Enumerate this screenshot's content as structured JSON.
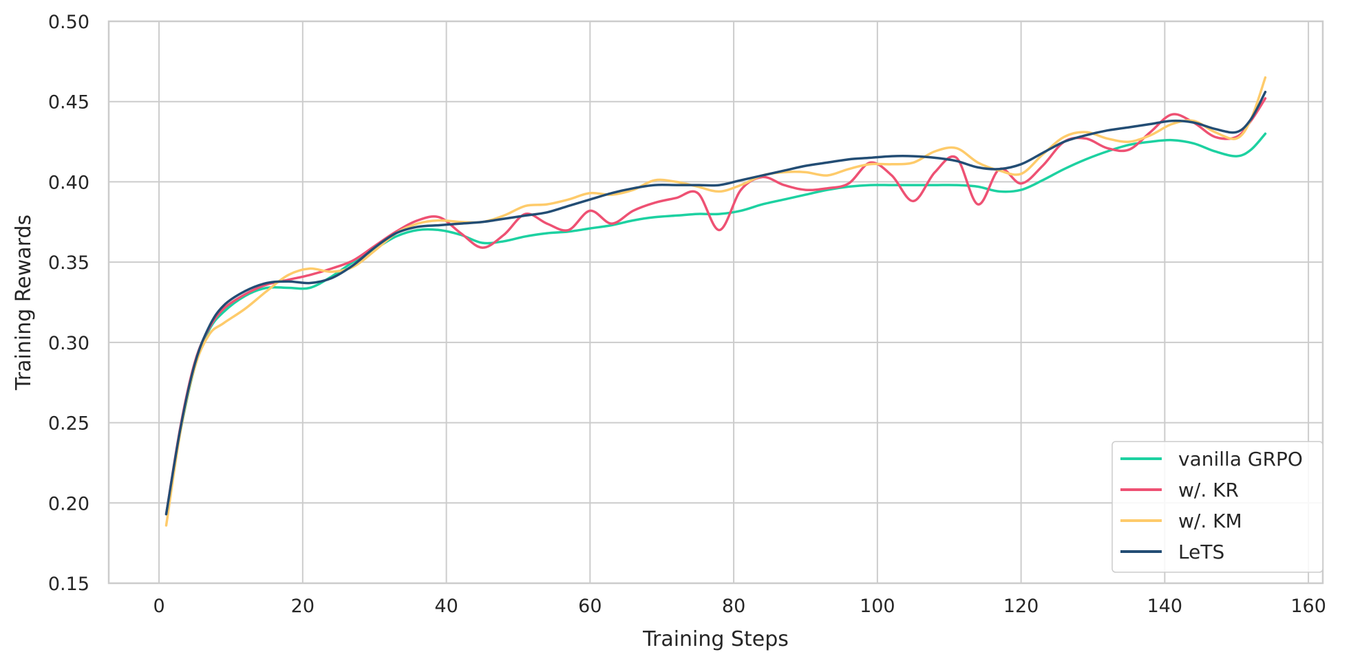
{
  "chart_data": {
    "type": "line",
    "xlabel": "Training Steps",
    "ylabel": "Training Rewards",
    "xlim": [
      -7,
      162
    ],
    "ylim": [
      0.15,
      0.5
    ],
    "xticks": [
      0,
      20,
      40,
      60,
      80,
      100,
      120,
      140,
      160
    ],
    "yticks": [
      0.15,
      0.2,
      0.25,
      0.3,
      0.35,
      0.4,
      0.45,
      0.5
    ],
    "xtick_labels": [
      "0",
      "20",
      "40",
      "60",
      "80",
      "100",
      "120",
      "140",
      "160"
    ],
    "ytick_labels": [
      "0.15",
      "0.20",
      "0.25",
      "0.30",
      "0.35",
      "0.40",
      "0.45",
      "0.50"
    ],
    "grid": true,
    "legend_position": "lower-right",
    "x": [
      1,
      3,
      5,
      7,
      9,
      12,
      15,
      18,
      21,
      24,
      27,
      30,
      33,
      36,
      39,
      42,
      45,
      48,
      51,
      54,
      57,
      60,
      63,
      66,
      69,
      72,
      75,
      78,
      81,
      84,
      87,
      90,
      93,
      96,
      99,
      102,
      105,
      108,
      111,
      114,
      117,
      120,
      123,
      126,
      129,
      132,
      135,
      138,
      141,
      144,
      147,
      150,
      152,
      154
    ],
    "series": [
      {
        "name": "vanilla GRPO",
        "color": "#1dd1a1",
        "values": [
          0.193,
          0.245,
          0.285,
          0.308,
          0.319,
          0.329,
          0.334,
          0.334,
          0.334,
          0.341,
          0.35,
          0.358,
          0.366,
          0.37,
          0.37,
          0.367,
          0.362,
          0.363,
          0.366,
          0.368,
          0.369,
          0.371,
          0.373,
          0.376,
          0.378,
          0.379,
          0.38,
          0.38,
          0.382,
          0.386,
          0.389,
          0.392,
          0.395,
          0.397,
          0.398,
          0.398,
          0.398,
          0.398,
          0.398,
          0.397,
          0.394,
          0.395,
          0.401,
          0.408,
          0.414,
          0.419,
          0.423,
          0.425,
          0.426,
          0.424,
          0.419,
          0.416,
          0.42,
          0.43
        ]
      },
      {
        "name": "w/. KR",
        "color": "#ee5173",
        "values": [
          0.193,
          0.248,
          0.288,
          0.309,
          0.321,
          0.33,
          0.336,
          0.339,
          0.342,
          0.346,
          0.351,
          0.36,
          0.369,
          0.376,
          0.378,
          0.368,
          0.359,
          0.367,
          0.38,
          0.374,
          0.37,
          0.382,
          0.374,
          0.382,
          0.387,
          0.39,
          0.393,
          0.37,
          0.395,
          0.403,
          0.398,
          0.395,
          0.396,
          0.399,
          0.412,
          0.404,
          0.388,
          0.406,
          0.415,
          0.386,
          0.408,
          0.399,
          0.41,
          0.425,
          0.427,
          0.421,
          0.42,
          0.431,
          0.442,
          0.437,
          0.428,
          0.428,
          0.438,
          0.452
        ]
      },
      {
        "name": "w/. KM",
        "color": "#fecb6b",
        "values": [
          0.186,
          0.245,
          0.285,
          0.305,
          0.312,
          0.321,
          0.332,
          0.342,
          0.346,
          0.344,
          0.347,
          0.357,
          0.368,
          0.374,
          0.376,
          0.375,
          0.375,
          0.379,
          0.385,
          0.386,
          0.389,
          0.393,
          0.392,
          0.395,
          0.401,
          0.4,
          0.397,
          0.394,
          0.398,
          0.404,
          0.406,
          0.406,
          0.404,
          0.408,
          0.411,
          0.411,
          0.412,
          0.419,
          0.421,
          0.412,
          0.407,
          0.405,
          0.417,
          0.428,
          0.431,
          0.427,
          0.425,
          0.429,
          0.436,
          0.438,
          0.431,
          0.427,
          0.439,
          0.465
        ]
      },
      {
        "name": "LeTS",
        "color": "#234d74",
        "values": [
          0.193,
          0.247,
          0.287,
          0.31,
          0.323,
          0.332,
          0.337,
          0.338,
          0.337,
          0.34,
          0.348,
          0.359,
          0.368,
          0.372,
          0.373,
          0.374,
          0.375,
          0.377,
          0.379,
          0.381,
          0.385,
          0.389,
          0.393,
          0.396,
          0.398,
          0.398,
          0.398,
          0.398,
          0.401,
          0.404,
          0.407,
          0.41,
          0.412,
          0.414,
          0.415,
          0.416,
          0.416,
          0.415,
          0.413,
          0.409,
          0.408,
          0.411,
          0.418,
          0.425,
          0.429,
          0.432,
          0.434,
          0.436,
          0.438,
          0.437,
          0.433,
          0.431,
          0.439,
          0.456
        ]
      }
    ]
  }
}
